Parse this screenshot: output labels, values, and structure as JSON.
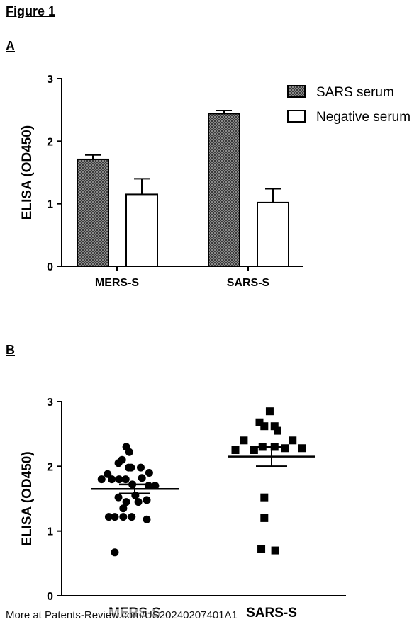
{
  "figure_title": "Figure 1",
  "footer": "More at Patents-Review.com/US20240207401A1",
  "colors": {
    "sars": "#555555",
    "neg": "#ffffff",
    "stroke": "#000000"
  },
  "chart_data": [
    {
      "panel": "A",
      "type": "bar",
      "categories": [
        "MERS-S",
        "SARS-S"
      ],
      "ylabel": "ELISA (OD450)",
      "ylim": [
        0,
        3
      ],
      "yticks": [
        "0",
        "1",
        "2",
        "3"
      ],
      "legend_position": "top-right",
      "series": [
        {
          "name": "SARS serum",
          "values": [
            1.71,
            2.44
          ],
          "errors": [
            0.07,
            0.05
          ]
        },
        {
          "name": "Negative serum",
          "values": [
            1.15,
            1.02
          ],
          "errors": [
            0.25,
            0.22
          ]
        }
      ]
    },
    {
      "panel": "B",
      "type": "scatter",
      "categories": [
        "MERS-S",
        "SARS-S"
      ],
      "ylabel": "ELISA (OD450)",
      "ylim": [
        0,
        3
      ],
      "yticks": [
        "0",
        "1",
        "2",
        "3"
      ],
      "groups": [
        {
          "name": "MERS-S",
          "marker": "circle",
          "mean": 1.65,
          "sem": 0.07,
          "points": [
            [
              -0.14,
              2.3
            ],
            [
              -0.09,
              2.22
            ],
            [
              -0.21,
              2.1
            ],
            [
              -0.27,
              2.05
            ],
            [
              -0.45,
              1.88
            ],
            [
              -0.1,
              1.98
            ],
            [
              -0.06,
              1.98
            ],
            [
              0.1,
              1.98
            ],
            [
              0.24,
              1.9
            ],
            [
              -0.38,
              1.8
            ],
            [
              -0.26,
              1.8
            ],
            [
              -0.15,
              1.8
            ],
            [
              -0.04,
              1.72
            ],
            [
              0.12,
              1.82
            ],
            [
              -0.55,
              1.8
            ],
            [
              0.23,
              1.7
            ],
            [
              0.34,
              1.7
            ],
            [
              0.01,
              1.55
            ],
            [
              -0.27,
              1.52
            ],
            [
              -0.14,
              1.45
            ],
            [
              0.06,
              1.45
            ],
            [
              0.2,
              1.48
            ],
            [
              -0.19,
              1.35
            ],
            [
              -0.43,
              1.22
            ],
            [
              -0.33,
              1.22
            ],
            [
              -0.19,
              1.22
            ],
            [
              -0.05,
              1.22
            ],
            [
              0.2,
              1.18
            ],
            [
              -0.33,
              0.67
            ]
          ]
        },
        {
          "name": "SARS-S",
          "marker": "square",
          "mean": 2.15,
          "sem": 0.15,
          "points": [
            [
              -0.03,
              2.85
            ],
            [
              -0.2,
              2.68
            ],
            [
              -0.12,
              2.62
            ],
            [
              0.05,
              2.62
            ],
            [
              0.1,
              2.55
            ],
            [
              -0.46,
              2.4
            ],
            [
              0.35,
              2.4
            ],
            [
              -0.6,
              2.25
            ],
            [
              -0.15,
              2.3
            ],
            [
              0.05,
              2.3
            ],
            [
              -0.29,
              2.25
            ],
            [
              0.22,
              2.28
            ],
            [
              0.5,
              2.28
            ],
            [
              -0.12,
              1.52
            ],
            [
              -0.12,
              1.2
            ],
            [
              -0.17,
              0.72
            ],
            [
              0.06,
              0.7
            ]
          ]
        }
      ]
    }
  ]
}
